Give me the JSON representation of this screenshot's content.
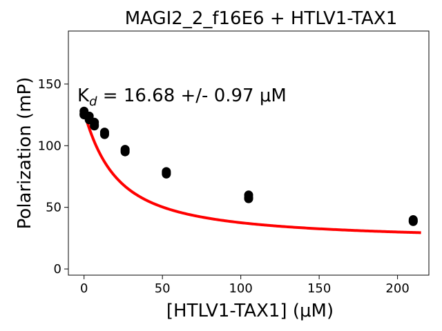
{
  "chart_data": {
    "type": "scatter",
    "title": "MAGI2_2_f16E6 + HTLV1-TAX1",
    "xlabel": "[HTLV1-TAX1] (μM)",
    "ylabel": "Polarization (mP)",
    "xlim": [
      -10,
      220
    ],
    "ylim": [
      -5,
      193
    ],
    "xticks": [
      0,
      50,
      100,
      150,
      200
    ],
    "yticks": [
      0,
      50,
      100,
      150
    ],
    "annotation": {
      "k_symbol": "K",
      "k_subscript": "d",
      "text": " = 16.68 +/- 0.97 μM"
    },
    "series": [
      {
        "kind": "points",
        "color": "#000000",
        "x": [
          0,
          0,
          0,
          3.3,
          3.3,
          3.3,
          6.6,
          6.6,
          6.6,
          13.1,
          13.1,
          13.1,
          26.2,
          26.2,
          26.2,
          52.5,
          52.5,
          52.5,
          105,
          105,
          105,
          210,
          210,
          210
        ],
        "y": [
          128,
          126,
          125,
          124,
          122,
          121,
          119,
          117,
          116,
          111,
          110,
          109,
          97,
          96,
          95,
          79,
          78,
          77,
          60,
          58,
          57,
          40,
          39,
          38.5
        ]
      },
      {
        "kind": "fit",
        "color": "#ff0000",
        "model": {
          "top": 127.5,
          "bottom": 21.6,
          "kd": 16.68,
          "total": 7.0
        },
        "xrange": [
          0,
          215
        ]
      }
    ]
  }
}
